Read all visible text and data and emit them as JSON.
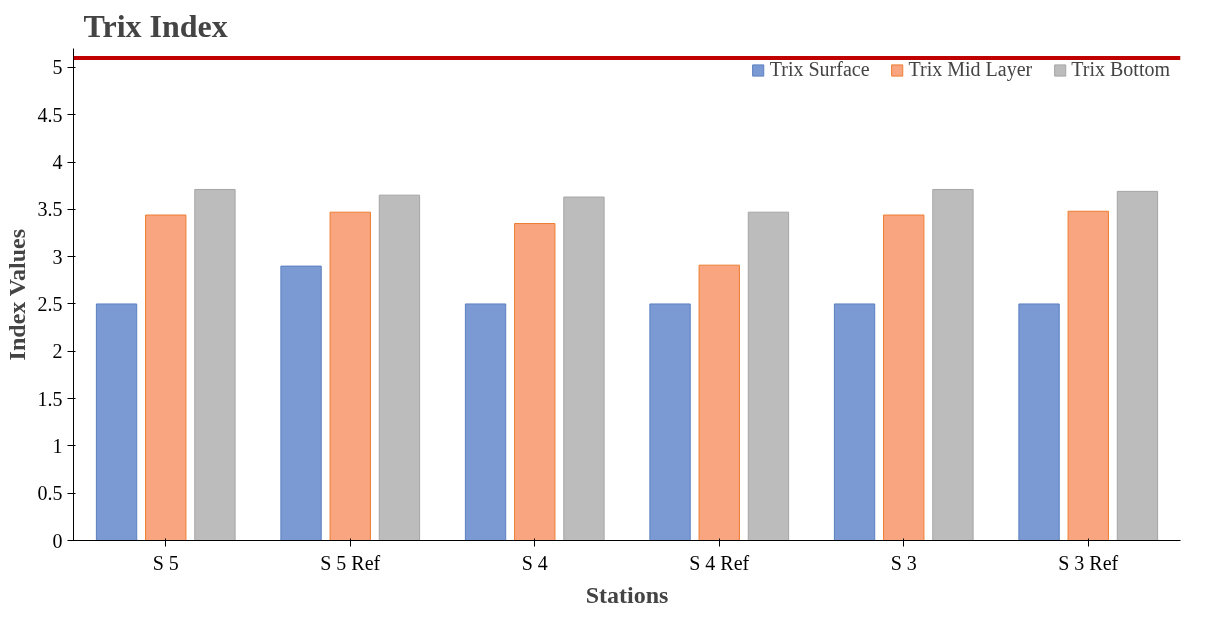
{
  "chart_data": {
    "type": "bar",
    "title": "Trix Index",
    "xlabel": "Stations",
    "ylabel": "Index Values",
    "categories": [
      "S 5",
      "S 5 Ref",
      "S 4",
      "S 4 Ref",
      "S 3",
      "S 3 Ref"
    ],
    "series": [
      {
        "name": "Trix Surface",
        "color": "#7b9ad4",
        "values": [
          2.5,
          2.9,
          2.5,
          2.5,
          2.5,
          2.5
        ]
      },
      {
        "name": "Trix Mid Layer",
        "color": "#f9a580",
        "values": [
          3.44,
          3.47,
          3.35,
          2.91,
          3.44,
          3.48
        ]
      },
      {
        "name": "Trix Bottom",
        "color": "#bcbcbc",
        "values": [
          3.71,
          3.65,
          3.63,
          3.47,
          3.71,
          3.69
        ]
      }
    ],
    "ylim": [
      0,
      5.2
    ],
    "yticks": [
      0,
      0.5,
      1,
      1.5,
      2,
      2.5,
      3,
      3.5,
      4,
      4.5,
      5
    ],
    "ref_lines": [
      {
        "axis": "y",
        "value": 5.1,
        "label": null,
        "color": "#c00000"
      }
    ],
    "grid": false,
    "legend": "top right"
  }
}
